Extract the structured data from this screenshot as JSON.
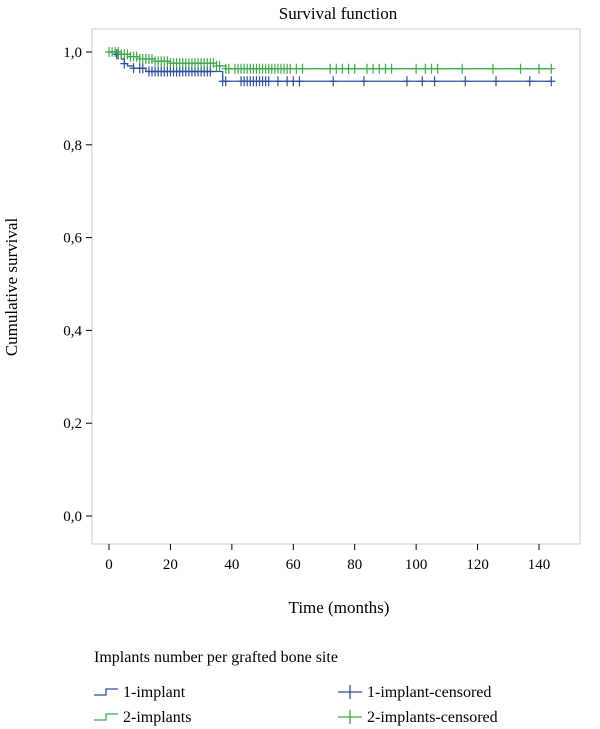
{
  "chart_data": {
    "type": "line",
    "title": "Survival function",
    "xlabel": "Time (months)",
    "ylabel": "Cumulative survival",
    "xlim": [
      -5,
      150
    ],
    "ylim": [
      0,
      1.05
    ],
    "x_ticks": [
      0,
      20,
      40,
      60,
      80,
      100,
      120,
      140
    ],
    "x_tick_labels": [
      "0",
      "20",
      "40",
      "60",
      "80",
      "100",
      "120",
      "140"
    ],
    "y_ticks": [
      0,
      0.2,
      0.4,
      0.6,
      0.8,
      1.0
    ],
    "y_tick_labels": [
      "0,0",
      "0,2",
      "0,4",
      "0,6",
      "0,8",
      "1,0"
    ],
    "legend_title": "Implants number per grafted bone site",
    "legend_position": "bottom",
    "series": [
      {
        "name": "1-implant",
        "color": "#2e4e9e",
        "step": [
          [
            0,
            1.0
          ],
          [
            2,
            0.995
          ],
          [
            4,
            0.985
          ],
          [
            5,
            0.975
          ],
          [
            6,
            0.97
          ],
          [
            8,
            0.965
          ],
          [
            12,
            0.958
          ],
          [
            37,
            0.937
          ],
          [
            144,
            0.937
          ]
        ],
        "censored_name": "1-implant-censored",
        "censored": [
          2.5,
          3,
          5,
          8,
          10,
          11,
          13,
          14,
          15,
          16,
          17,
          18,
          19,
          20,
          21,
          22,
          23,
          24,
          25,
          26,
          27,
          28,
          29,
          30,
          31,
          32,
          33,
          37,
          38,
          43,
          44,
          45,
          46,
          47,
          48,
          49,
          50,
          51,
          52,
          55,
          58,
          60,
          62,
          73,
          83,
          97,
          102,
          106,
          116,
          126,
          137,
          144
        ]
      },
      {
        "name": "2-implants",
        "color": "#3fa84b",
        "step": [
          [
            0,
            1.0
          ],
          [
            4,
            0.995
          ],
          [
            7,
            0.99
          ],
          [
            10,
            0.985
          ],
          [
            15,
            0.98
          ],
          [
            20,
            0.976
          ],
          [
            35,
            0.97
          ],
          [
            38,
            0.964
          ],
          [
            144,
            0.964
          ]
        ],
        "censored_name": "2-implants-censored",
        "censored": [
          0,
          1,
          2,
          3,
          4,
          5,
          6,
          7,
          8,
          9,
          10,
          11,
          12,
          13,
          14,
          15,
          16,
          17,
          18,
          19,
          20,
          21,
          22,
          23,
          24,
          25,
          26,
          27,
          28,
          29,
          30,
          31,
          32,
          33,
          34,
          35,
          36,
          38,
          39,
          41,
          42,
          43,
          44,
          45,
          46,
          47,
          48,
          49,
          50,
          51,
          52,
          53,
          54,
          55,
          56,
          57,
          58,
          59,
          61,
          63,
          72,
          74,
          76,
          78,
          80,
          84,
          86,
          88,
          90,
          92,
          100,
          103,
          105,
          107,
          115,
          125,
          134,
          140,
          144
        ]
      }
    ]
  }
}
